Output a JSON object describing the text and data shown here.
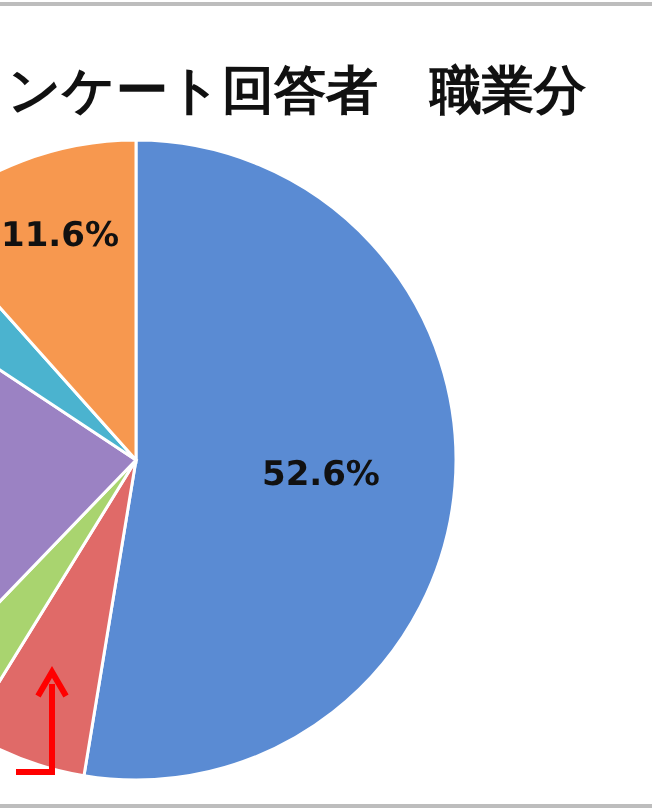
{
  "chart_data": {
    "type": "pie",
    "title": "ンケート回答者　職業分",
    "categories": [
      null,
      null,
      null,
      null,
      null,
      null
    ],
    "values": [
      52.6,
      6.2,
      3.4,
      22.1,
      4.1,
      11.6
    ],
    "colors": [
      "#5a8bd3",
      "#e06a68",
      "#a9d46f",
      "#9b82c3",
      "#4bb3cf",
      "#f7984f"
    ],
    "value_labels": [
      "52.6%",
      null,
      null,
      null,
      null,
      "11.6%"
    ]
  }
}
